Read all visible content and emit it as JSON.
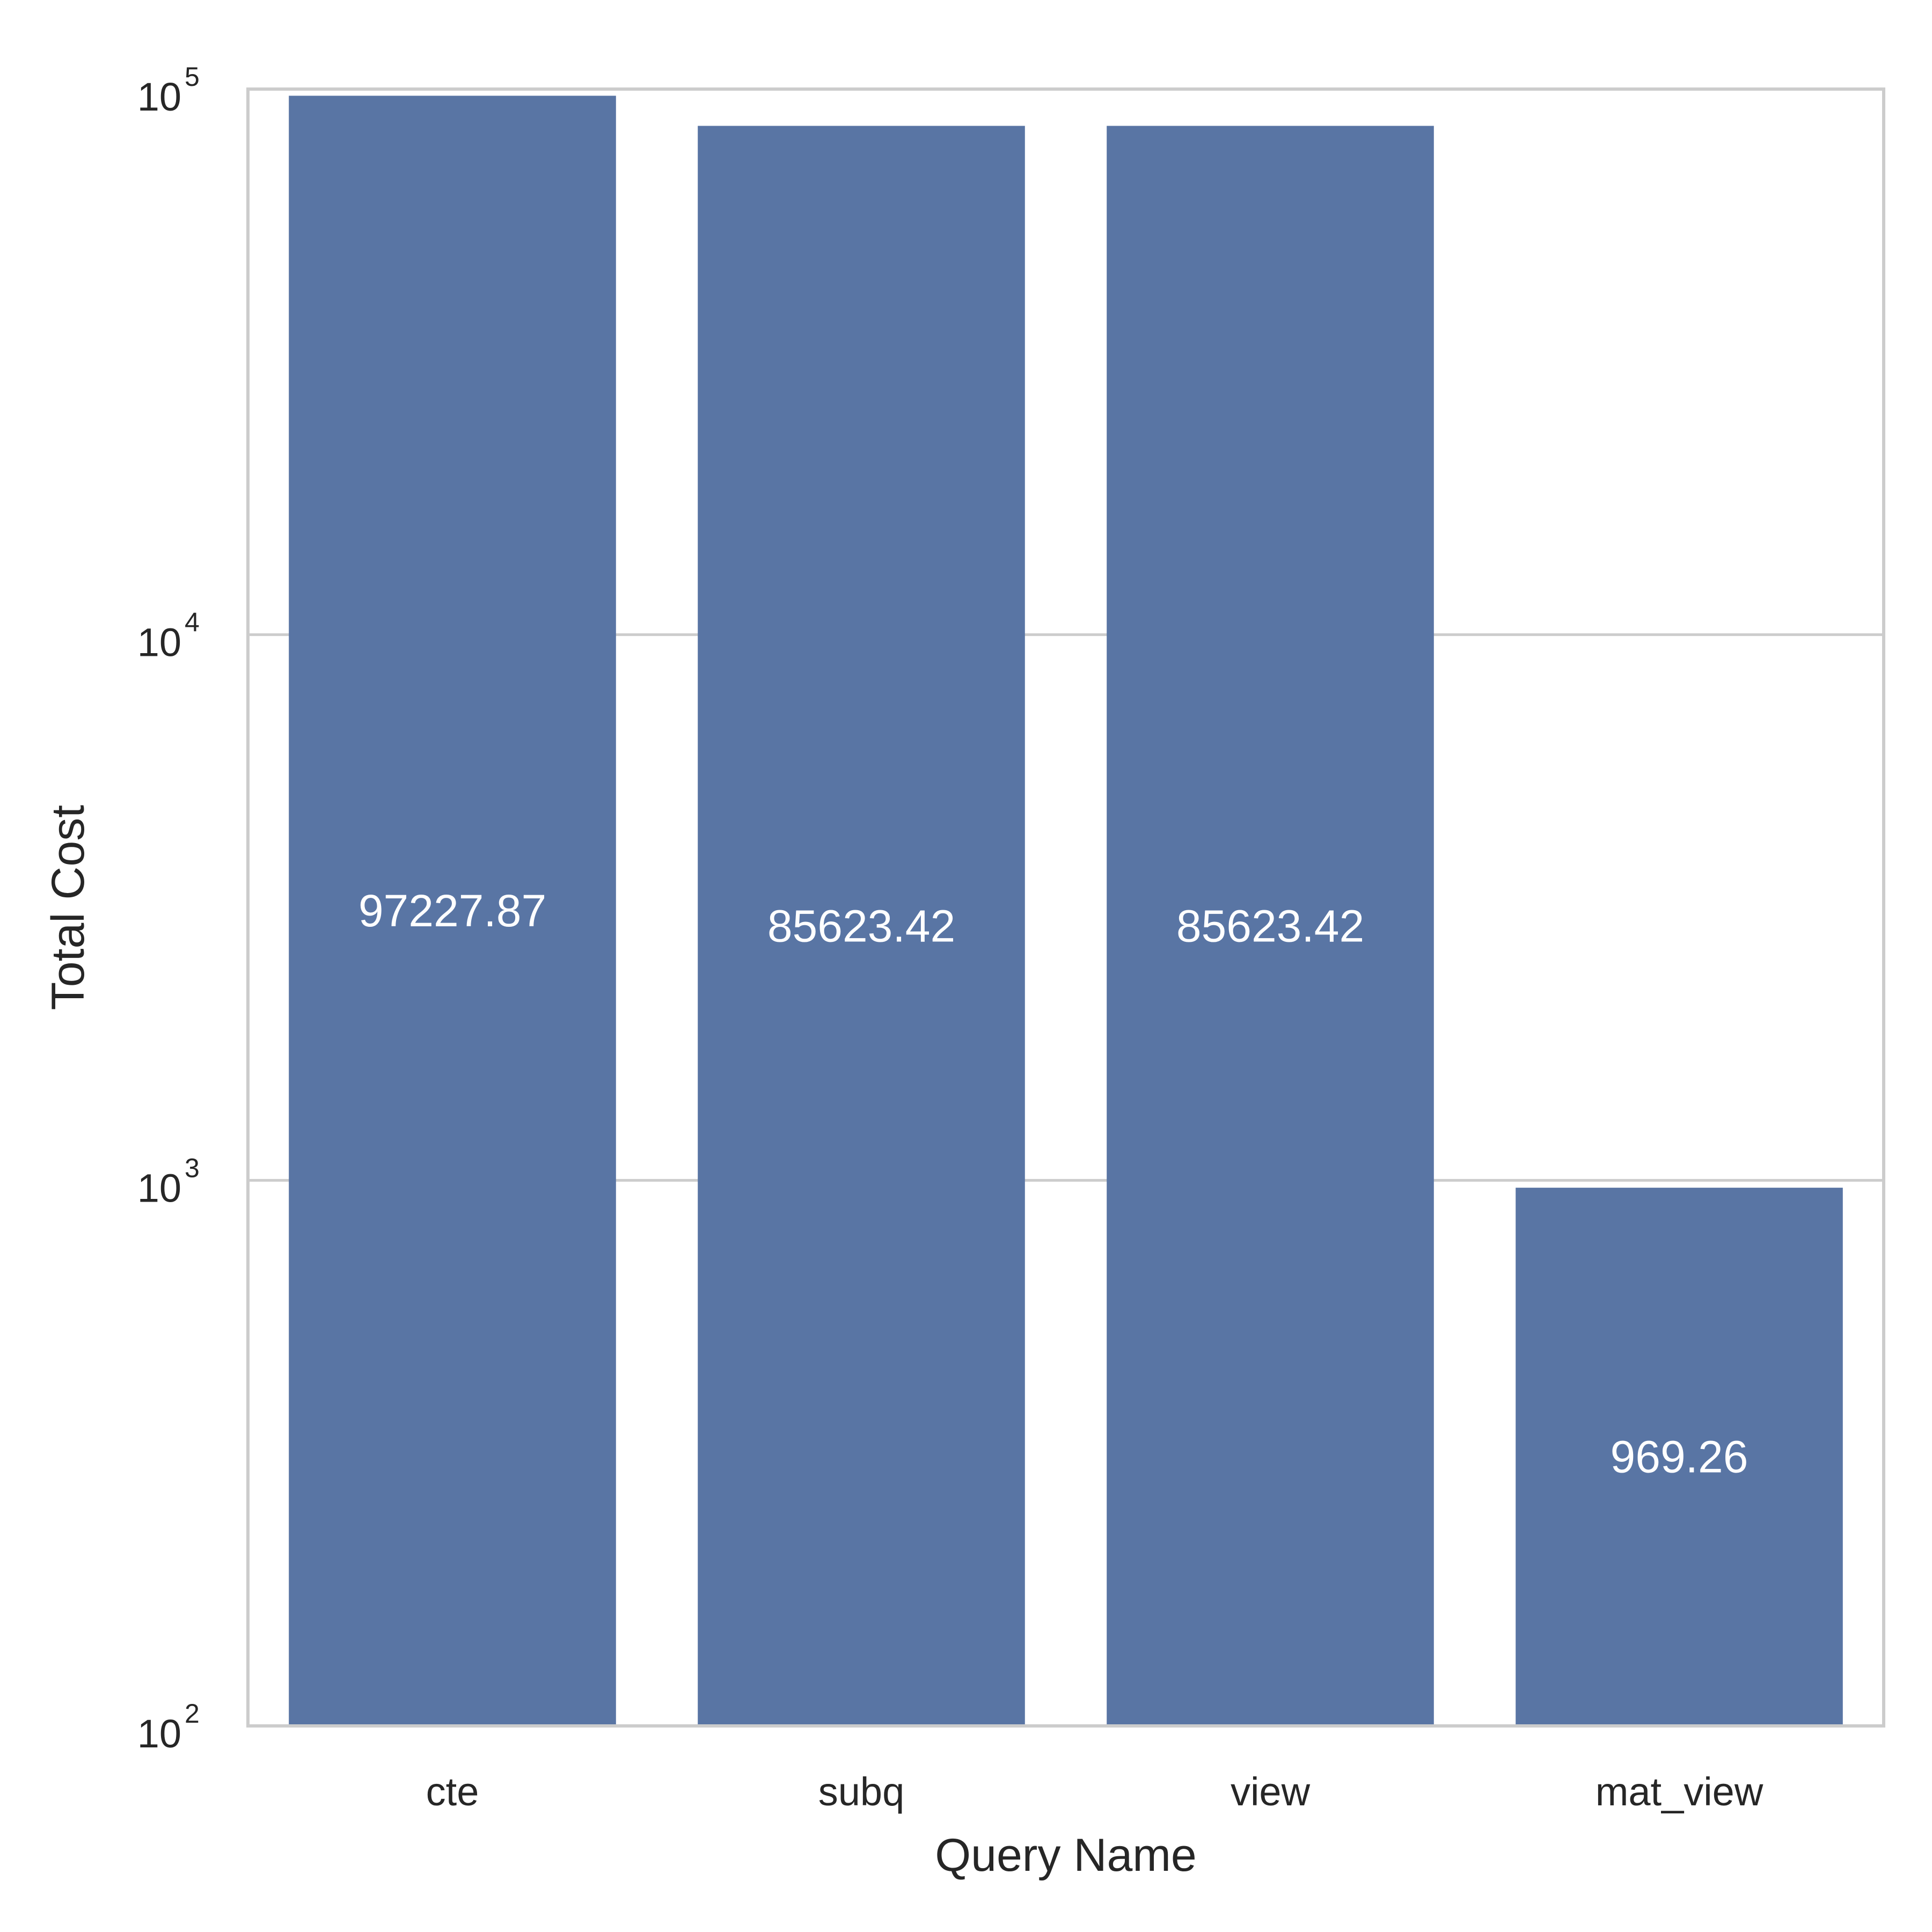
{
  "chart_data": {
    "type": "bar",
    "categories": [
      "cte",
      "subq",
      "view",
      "mat_view"
    ],
    "values": [
      97227.87,
      85623.42,
      85623.42,
      969.26
    ],
    "value_labels": [
      "97227.87",
      "85623.42",
      "85623.42",
      "969.26"
    ],
    "xlabel": "Query Name",
    "ylabel": "Total Cost",
    "yscale": "log",
    "ylim": [
      100,
      100000
    ],
    "yticks": [
      {
        "value": 100,
        "base": "10",
        "exp": "2"
      },
      {
        "value": 1000,
        "base": "10",
        "exp": "3"
      },
      {
        "value": 10000,
        "base": "10",
        "exp": "4"
      },
      {
        "value": 100000,
        "base": "10",
        "exp": "5"
      }
    ],
    "grid": "horizontal",
    "legend": "none",
    "colors": {
      "bar": "#5975a4",
      "grid": "#cccccc",
      "frame": "#cccccc",
      "text": "#262626",
      "bar_label": "#ffffff"
    }
  }
}
